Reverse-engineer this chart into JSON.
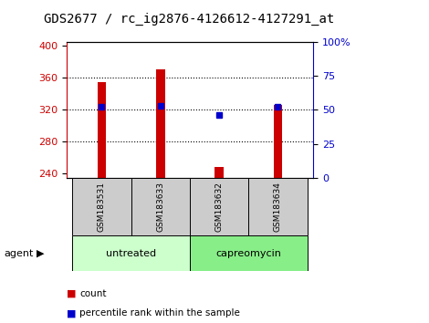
{
  "title": "GDS2677 / rc_ig2876-4126612-4127291_at",
  "samples": [
    "GSM183531",
    "GSM183633",
    "GSM183632",
    "GSM183634"
  ],
  "counts": [
    355,
    371,
    248,
    326
  ],
  "percentiles": [
    52,
    53,
    46,
    52
  ],
  "ylim_left": [
    235,
    405
  ],
  "ylim_right": [
    0,
    100
  ],
  "yticks_left": [
    240,
    280,
    320,
    360,
    400
  ],
  "yticks_right": [
    0,
    25,
    50,
    75,
    100
  ],
  "bar_color": "#cc0000",
  "percentile_color": "#0000cc",
  "groups": [
    {
      "label": "untreated",
      "indices": [
        0,
        1
      ],
      "color": "#ccffcc"
    },
    {
      "label": "capreomycin",
      "indices": [
        2,
        3
      ],
      "color": "#88ee88"
    }
  ],
  "group_label": "agent",
  "legend_items": [
    {
      "label": "count",
      "color": "#cc0000"
    },
    {
      "label": "percentile rank within the sample",
      "color": "#0000cc"
    }
  ],
  "sample_box_color": "#cccccc",
  "title_fontsize": 10,
  "bar_width": 0.15
}
